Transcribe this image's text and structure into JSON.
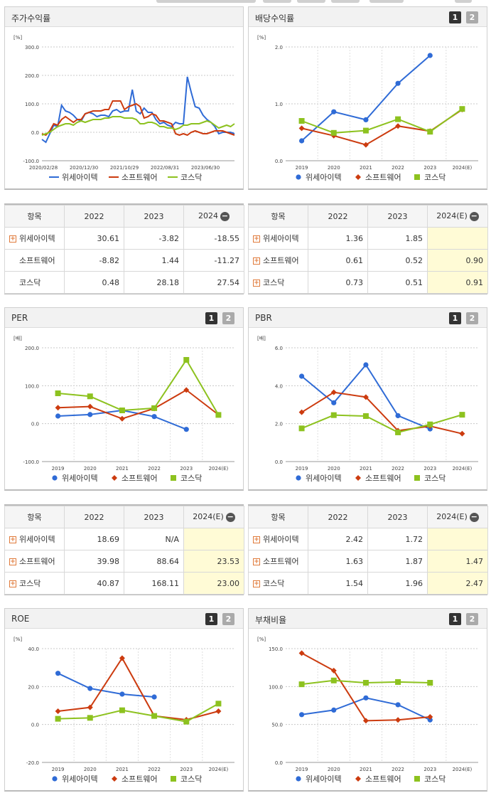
{
  "colors": {
    "s1": "#2f6bd6",
    "s2": "#cc3b0f",
    "s3": "#8dc21f"
  },
  "legend": [
    "위세아이텍",
    "소프트웨어",
    "코스닥"
  ],
  "panels": {
    "stock": {
      "title": "주가수익률"
    },
    "dividend": {
      "title": "배당수익률"
    },
    "per": {
      "title": "PER"
    },
    "pbr": {
      "title": "PBR"
    },
    "roe": {
      "title": "ROE"
    },
    "debt": {
      "title": "부채비율"
    }
  },
  "page_buttons": [
    "1",
    "2"
  ],
  "chart_data": [
    {
      "id": "stock",
      "type": "line",
      "title": "주가수익률",
      "unit": "[%]",
      "ylim": [
        -100,
        300
      ],
      "yticks": [
        -100,
        0,
        100,
        200,
        300
      ],
      "ytick_labels": [
        "-100.0",
        "0.0",
        "100.0",
        "200.0",
        "300.0"
      ],
      "xtick_labels": [
        "2020/02/28",
        "2020/12/30",
        "2021/10/29",
        "2022/08/31",
        "2023/06/30"
      ],
      "series": [
        {
          "name": "위세아이텍",
          "values": [
            -25,
            -35,
            -5,
            25,
            20,
            95,
            75,
            70,
            60,
            45,
            40,
            65,
            70,
            65,
            55,
            60,
            60,
            55,
            75,
            80,
            70,
            75,
            75,
            150,
            75,
            65,
            85,
            70,
            70,
            45,
            30,
            35,
            25,
            20,
            35,
            30,
            30,
            195,
            140,
            90,
            85,
            60,
            45,
            35,
            20,
            -5,
            0,
            0,
            0,
            -5
          ]
        },
        {
          "name": "소프트웨어",
          "values": [
            -5,
            -10,
            5,
            30,
            25,
            45,
            55,
            45,
            35,
            45,
            45,
            65,
            70,
            75,
            75,
            75,
            80,
            80,
            110,
            110,
            110,
            80,
            90,
            95,
            100,
            90,
            50,
            55,
            65,
            60,
            40,
            40,
            35,
            30,
            -5,
            -10,
            -5,
            -10,
            0,
            5,
            0,
            -5,
            -5,
            0,
            5,
            5,
            5,
            0,
            -5,
            -10
          ]
        },
        {
          "name": "코스닥",
          "values": [
            -10,
            -5,
            0,
            10,
            20,
            25,
            30,
            30,
            25,
            35,
            40,
            35,
            40,
            45,
            45,
            45,
            50,
            50,
            55,
            55,
            55,
            50,
            50,
            50,
            45,
            30,
            30,
            35,
            35,
            30,
            20,
            20,
            15,
            15,
            10,
            15,
            25,
            25,
            30,
            30,
            30,
            35,
            40,
            35,
            25,
            15,
            20,
            25,
            20,
            30
          ]
        }
      ]
    },
    {
      "id": "dividend",
      "type": "line",
      "title": "배당수익률",
      "unit": "[%]",
      "ylim": [
        0,
        2
      ],
      "yticks": [
        0,
        1,
        2
      ],
      "ytick_labels": [
        "0.0",
        "1.0",
        "2.0"
      ],
      "categories": [
        "2019",
        "2020",
        "2021",
        "2022",
        "2023",
        "2024(E)"
      ],
      "series": [
        {
          "name": "위세아이텍",
          "values": [
            0.35,
            0.86,
            0.72,
            1.36,
            1.85,
            null
          ]
        },
        {
          "name": "소프트웨어",
          "values": [
            0.57,
            0.44,
            0.28,
            0.61,
            0.52,
            0.9
          ]
        },
        {
          "name": "코스닥",
          "values": [
            0.7,
            0.49,
            0.53,
            0.73,
            0.51,
            0.91
          ]
        }
      ]
    },
    {
      "id": "per",
      "type": "line",
      "title": "PER",
      "unit": "[배]",
      "ylim": [
        -100,
        200
      ],
      "yticks": [
        -100,
        0,
        100,
        200
      ],
      "ytick_labels": [
        "-100.0",
        "0.0",
        "100.0",
        "200.0"
      ],
      "categories": [
        "2019",
        "2020",
        "2021",
        "2022",
        "2023",
        "2024(E)"
      ],
      "series": [
        {
          "name": "위세아이텍",
          "values": [
            20,
            24,
            35,
            18.69,
            -15,
            null
          ]
        },
        {
          "name": "소프트웨어",
          "values": [
            42,
            45,
            13,
            39.98,
            88.64,
            23.53
          ]
        },
        {
          "name": "코스닥",
          "values": [
            80,
            72,
            35,
            40.87,
            168.11,
            23.0
          ]
        }
      ]
    },
    {
      "id": "pbr",
      "type": "line",
      "title": "PBR",
      "unit": "[배]",
      "ylim": [
        0,
        6
      ],
      "yticks": [
        0,
        2,
        4,
        6
      ],
      "ytick_labels": [
        "0.0",
        "2.0",
        "4.0",
        "6.0"
      ],
      "categories": [
        "2019",
        "2020",
        "2021",
        "2022",
        "2023",
        "2024(E)"
      ],
      "series": [
        {
          "name": "위세아이텍",
          "values": [
            4.5,
            3.1,
            5.1,
            2.42,
            1.72,
            null
          ]
        },
        {
          "name": "소프트웨어",
          "values": [
            2.6,
            3.65,
            3.4,
            1.63,
            1.87,
            1.47
          ]
        },
        {
          "name": "코스닥",
          "values": [
            1.75,
            2.45,
            2.4,
            1.54,
            1.96,
            2.47
          ]
        }
      ]
    },
    {
      "id": "roe",
      "type": "line",
      "title": "ROE",
      "unit": "[%]",
      "ylim": [
        -20,
        40
      ],
      "yticks": [
        -20,
        0,
        20,
        40
      ],
      "ytick_labels": [
        "-20.0",
        "0.0",
        "20.0",
        "40.0"
      ],
      "categories": [
        "2019",
        "2020",
        "2021",
        "2022",
        "2023",
        "2024(E)"
      ],
      "series": [
        {
          "name": "위세아이텍",
          "values": [
            27,
            19,
            16,
            14.5,
            null,
            null
          ]
        },
        {
          "name": "소프트웨어",
          "values": [
            7,
            9,
            35,
            4.5,
            2.5,
            7
          ]
        },
        {
          "name": "코스닥",
          "values": [
            3,
            3.5,
            7.5,
            4.5,
            1.5,
            11
          ]
        }
      ]
    },
    {
      "id": "debt",
      "type": "line",
      "title": "부채비율",
      "unit": "[%]",
      "ylim": [
        0,
        150
      ],
      "yticks": [
        0,
        50,
        100,
        150
      ],
      "ytick_labels": [
        "0.0",
        "50.0",
        "100.0",
        "150.0"
      ],
      "categories": [
        "2019",
        "2020",
        "2021",
        "2022",
        "2023",
        "2024(E)"
      ],
      "series": [
        {
          "name": "위세아이텍",
          "values": [
            63,
            69,
            85,
            76,
            56,
            null
          ]
        },
        {
          "name": "소프트웨어",
          "values": [
            144,
            121,
            55,
            56,
            60,
            null
          ]
        },
        {
          "name": "코스닥",
          "values": [
            103,
            108,
            105,
            106,
            105,
            null
          ]
        }
      ]
    }
  ],
  "tables": {
    "stock": {
      "header": [
        "항목",
        "2022",
        "2023",
        "2024"
      ],
      "rows": [
        {
          "label": "위세아이텍",
          "plus": true,
          "v": [
            "30.61",
            "-3.82",
            "-18.55"
          ]
        },
        {
          "label": "소프트웨어",
          "plus": false,
          "v": [
            "-8.82",
            "1.44",
            "-11.27"
          ]
        },
        {
          "label": "코스닥",
          "plus": false,
          "v": [
            "0.48",
            "28.18",
            "27.54"
          ]
        }
      ]
    },
    "dividend": {
      "header": [
        "항목",
        "2022",
        "2023",
        "2024(E)"
      ],
      "rows": [
        {
          "label": "위세아이텍",
          "plus": true,
          "v": [
            "1.36",
            "1.85",
            ""
          ]
        },
        {
          "label": "소프트웨어",
          "plus": true,
          "v": [
            "0.61",
            "0.52",
            "0.90"
          ]
        },
        {
          "label": "코스닥",
          "plus": true,
          "v": [
            "0.73",
            "0.51",
            "0.91"
          ]
        }
      ]
    },
    "per": {
      "header": [
        "항목",
        "2022",
        "2023",
        "2024(E)"
      ],
      "rows": [
        {
          "label": "위세아이텍",
          "plus": true,
          "v": [
            "18.69",
            "N/A",
            ""
          ]
        },
        {
          "label": "소프트웨어",
          "plus": true,
          "v": [
            "39.98",
            "88.64",
            "23.53"
          ]
        },
        {
          "label": "코스닥",
          "plus": true,
          "v": [
            "40.87",
            "168.11",
            "23.00"
          ]
        }
      ]
    },
    "pbr": {
      "header": [
        "항목",
        "2022",
        "2023",
        "2024(E)"
      ],
      "rows": [
        {
          "label": "위세아이텍",
          "plus": true,
          "v": [
            "2.42",
            "1.72",
            ""
          ]
        },
        {
          "label": "소프트웨어",
          "plus": true,
          "v": [
            "1.63",
            "1.87",
            "1.47"
          ]
        },
        {
          "label": "코스닥",
          "plus": true,
          "v": [
            "1.54",
            "1.96",
            "2.47"
          ]
        }
      ]
    }
  }
}
